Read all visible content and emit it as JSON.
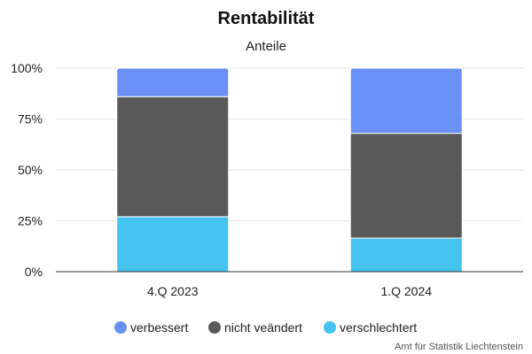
{
  "chart_data": {
    "type": "bar",
    "stacked": true,
    "title": "Rentabilität",
    "subtitle": "Anteile",
    "categories": [
      "4.Q 2023",
      "1.Q 2024"
    ],
    "ylim": [
      0,
      100
    ],
    "yticks": [
      0,
      25,
      50,
      75,
      100
    ],
    "ytick_labels": [
      "0%",
      "25%",
      "50%",
      "75%",
      "100%"
    ],
    "grid": true,
    "legend_position": "bottom",
    "series": [
      {
        "name": "verschlechtert",
        "color": "#44c2f0",
        "values": [
          27,
          16.5
        ]
      },
      {
        "name": "nicht veändert",
        "color": "#595959",
        "values": [
          59,
          51.5
        ]
      },
      {
        "name": "verbessert",
        "color": "#6a90f7",
        "values": [
          14,
          32
        ]
      }
    ],
    "legend_order": [
      "verbessert",
      "nicht veändert",
      "verschlechtert"
    ],
    "credit": "Amt für Statistik Liechtenstein"
  }
}
